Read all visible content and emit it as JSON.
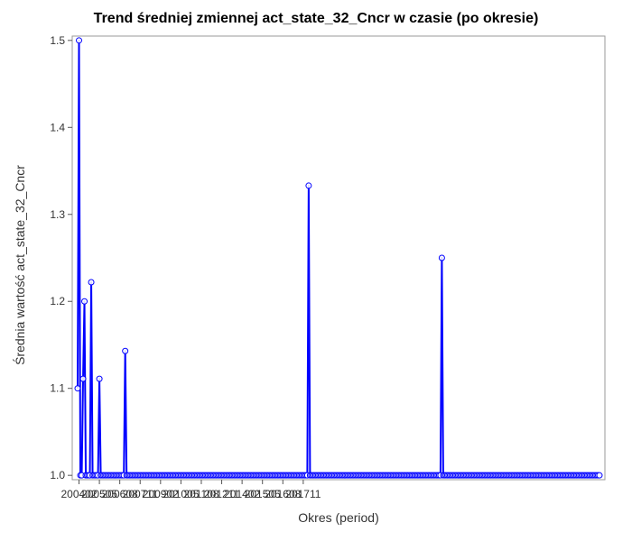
{
  "chart_data": {
    "type": "line",
    "title": "Trend średniej zmiennej act_state_32_Cncr w czasie (po okresie)",
    "xlabel": "Okres (period)",
    "ylabel": "Średnia wartość act_state_32_Cncr",
    "ylim": [
      0.995,
      1.505
    ],
    "yticks": [
      "1.0",
      "1.1",
      "1.2",
      "1.3",
      "1.4",
      "1.5"
    ],
    "xticks": [
      "200402",
      "200505",
      "200608",
      "200711",
      "200902",
      "201005",
      "201108",
      "201211",
      "201402",
      "201505",
      "201608",
      "201711"
    ],
    "grid": false,
    "legend": "none",
    "colors": {
      "line": "#0000ff",
      "marker": "#0000ff"
    },
    "start_period": "200401",
    "series": [
      {
        "values": [
          1.1,
          1.5,
          1.0,
          1.0,
          1.111,
          1.2,
          1.0,
          1.0,
          1.0,
          1.0,
          1.222,
          1.0,
          1.0,
          1.0,
          1.0,
          1.0,
          1.111,
          1.0,
          1.0,
          1.0,
          1.0,
          1.0,
          1.0,
          1.0,
          1.0,
          1.0,
          1.0,
          1.0,
          1.0,
          1.0,
          1.0,
          1.0,
          1.0,
          1.0,
          1.0,
          1.143,
          1.0,
          1.0,
          1.0,
          1.0,
          1.0,
          1.0,
          1.0,
          1.0,
          1.0,
          1.0,
          1.0,
          1.0,
          1.0,
          1.0,
          1.0,
          1.0,
          1.0,
          1.0,
          1.0,
          1.0,
          1.0,
          1.0,
          1.0,
          1.0,
          1.0,
          1.0,
          1.0,
          1.0,
          1.0,
          1.0,
          1.0,
          1.0,
          1.0,
          1.0,
          1.0,
          1.0,
          1.0,
          1.0,
          1.0,
          1.0,
          1.0,
          1.0,
          1.0,
          1.0,
          1.0,
          1.0,
          1.0,
          1.0,
          1.0,
          1.0,
          1.0,
          1.0,
          1.0,
          1.0,
          1.0,
          1.0,
          1.0,
          1.0,
          1.0,
          1.0,
          1.0,
          1.0,
          1.0,
          1.0,
          1.0,
          1.0,
          1.0,
          1.0,
          1.0,
          1.0,
          1.0,
          1.0,
          1.0,
          1.0,
          1.0,
          1.0,
          1.0,
          1.0,
          1.0,
          1.0,
          1.0,
          1.0,
          1.0,
          1.0,
          1.0,
          1.0,
          1.0,
          1.0,
          1.0,
          1.0,
          1.0,
          1.0,
          1.0,
          1.0,
          1.0,
          1.0,
          1.0,
          1.0,
          1.0,
          1.0,
          1.0,
          1.0,
          1.0,
          1.0,
          1.0,
          1.0,
          1.0,
          1.0,
          1.0,
          1.0,
          1.0,
          1.0,
          1.0,
          1.0,
          1.0,
          1.0,
          1.0,
          1.0,
          1.0,
          1.0,
          1.0,
          1.0,
          1.0,
          1.0,
          1.0,
          1.0,
          1.0,
          1.0,
          1.0,
          1.0,
          1.0,
          1.0,
          1.0,
          1.0,
          1.333,
          1.0,
          1.0,
          1.0,
          1.0,
          1.0,
          1.0,
          1.0,
          1.0,
          1.0,
          1.0,
          1.0,
          1.0,
          1.0,
          1.0,
          1.0,
          1.0,
          1.0,
          1.0,
          1.0,
          1.0,
          1.0,
          1.0,
          1.0,
          1.0,
          1.0,
          1.0,
          1.0,
          1.0,
          1.0,
          1.0,
          1.0,
          1.0,
          1.0,
          1.0,
          1.0,
          1.0,
          1.0,
          1.0,
          1.0,
          1.0,
          1.0,
          1.0,
          1.0,
          1.0,
          1.0,
          1.0,
          1.0,
          1.0,
          1.0,
          1.0,
          1.0,
          1.0,
          1.0,
          1.0,
          1.0,
          1.0,
          1.0,
          1.0,
          1.0,
          1.0,
          1.0,
          1.0,
          1.0,
          1.0,
          1.0,
          1.0,
          1.0,
          1.0,
          1.0,
          1.0,
          1.0,
          1.0,
          1.0,
          1.0,
          1.0,
          1.0,
          1.0,
          1.0,
          1.0,
          1.0,
          1.0,
          1.0,
          1.0,
          1.0,
          1.0,
          1.0,
          1.0,
          1.0,
          1.0,
          1.0,
          1.0,
          1.0,
          1.0,
          1.0,
          1.0,
          1.0,
          1.0,
          1.25,
          1.0,
          1.0,
          1.0,
          1.0,
          1.0,
          1.0,
          1.0,
          1.0,
          1.0,
          1.0,
          1.0,
          1.0,
          1.0,
          1.0,
          1.0,
          1.0,
          1.0,
          1.0,
          1.0,
          1.0,
          1.0,
          1.0,
          1.0,
          1.0,
          1.0,
          1.0,
          1.0,
          1.0,
          1.0,
          1.0,
          1.0,
          1.0,
          1.0,
          1.0,
          1.0,
          1.0,
          1.0,
          1.0,
          1.0,
          1.0,
          1.0,
          1.0,
          1.0,
          1.0,
          1.0,
          1.0,
          1.0,
          1.0,
          1.0,
          1.0,
          1.0,
          1.0,
          1.0,
          1.0,
          1.0,
          1.0,
          1.0,
          1.0,
          1.0,
          1.0,
          1.0,
          1.0,
          1.0,
          1.0,
          1.0,
          1.0,
          1.0,
          1.0,
          1.0,
          1.0,
          1.0,
          1.0,
          1.0,
          1.0,
          1.0,
          1.0,
          1.0,
          1.0,
          1.0,
          1.0,
          1.0,
          1.0,
          1.0,
          1.0,
          1.0,
          1.0,
          1.0,
          1.0,
          1.0,
          1.0,
          1.0,
          1.0,
          1.0,
          1.0,
          1.0,
          1.0,
          1.0,
          1.0,
          1.0,
          1.0,
          1.0,
          1.0,
          1.0,
          1.0,
          1.0,
          1.0,
          1.0,
          1.0,
          1.0,
          1.0,
          1.0,
          1.0,
          1.0,
          1.0,
          1.0,
          1.0
        ]
      }
    ]
  }
}
